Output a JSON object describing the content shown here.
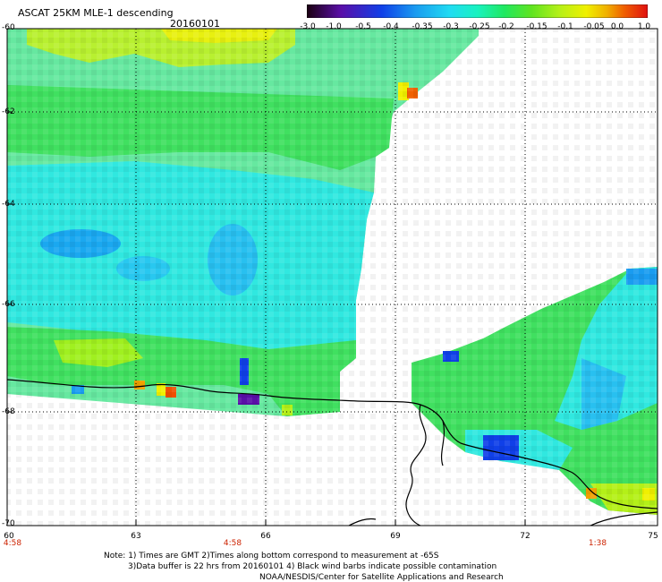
{
  "header": {
    "title": "ASCAT 25KM MLE-1 descending",
    "date": "20160101"
  },
  "colorbar": {
    "labels": [
      "-3.0",
      "-1.0",
      "-0.5",
      "-0.4",
      "-0.35",
      "-0.3",
      "-0.25",
      "-0.2",
      "-0.15",
      "-0.1",
      "-0.05",
      "0.0",
      "1.0"
    ],
    "colors": [
      "#1a0010",
      "#5a0fa8",
      "#1040e8",
      "#1a9cf0",
      "#20dcf2",
      "#18f2c0",
      "#20e860",
      "#60e420",
      "#b4f018",
      "#f0f000",
      "#f0b000",
      "#f06000",
      "#e01010"
    ]
  },
  "axes": {
    "lat_labels": [
      "-60",
      "-62",
      "-64",
      "-66",
      "-68",
      "-70"
    ],
    "lon_labels": [
      "60",
      "63",
      "66",
      "69",
      "72",
      "75"
    ],
    "time_labels": [
      "4:58",
      "4:58",
      "1:38"
    ]
  },
  "notes": {
    "line1": "Note: 1) Times are GMT 2)Times along bottom correspond to measurement at -65S",
    "line2": "3)Data buffer is 22 hrs from 20160101 4) Black wind barbs indicate possible contamination",
    "line3": "NOAA/NESDIS/Center for Satellite Applications and Research"
  }
}
